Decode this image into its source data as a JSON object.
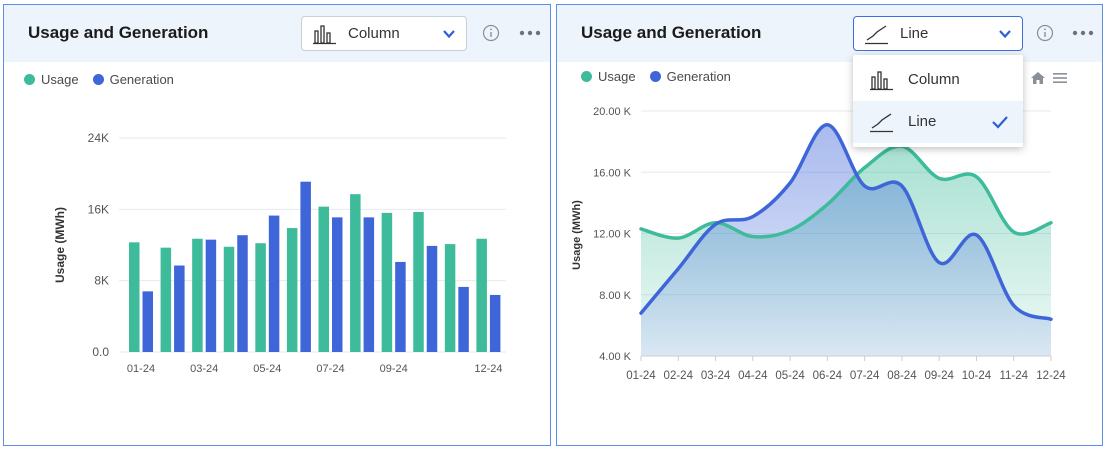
{
  "left_panel": {
    "title": "Usage and Generation",
    "select": {
      "value": "Column",
      "icon": "column-chart-icon"
    },
    "legend": [
      {
        "label": "Usage",
        "color": "#3dbb9a"
      },
      {
        "label": "Generation",
        "color": "#3f66d9"
      }
    ]
  },
  "right_panel": {
    "title": "Usage and Generation",
    "select": {
      "value": "Line",
      "icon": "line-chart-icon"
    },
    "legend": [
      {
        "label": "Usage",
        "color": "#3dbb9a"
      },
      {
        "label": "Generation",
        "color": "#3f66d9"
      }
    ],
    "dropdown": {
      "options": [
        {
          "label": "Column",
          "icon": "column-chart-icon",
          "selected": false
        },
        {
          "label": "Line",
          "icon": "line-chart-icon",
          "selected": true
        }
      ]
    }
  },
  "colors": {
    "usage": "#3dbb9a",
    "generation": "#3f66d9",
    "accent": "#3d6fe0",
    "header_bg": "#eef4fc"
  },
  "chart_data": [
    {
      "type": "bar",
      "ylabel": "Usage (MWh)",
      "ylim": [
        0,
        24000
      ],
      "ytick_labels": [
        "0.0",
        "8K",
        "16K",
        "24K"
      ],
      "ytick_values": [
        0,
        8000,
        16000,
        24000
      ],
      "categories": [
        "01-24",
        "02-24",
        "03-24",
        "04-24",
        "05-24",
        "06-24",
        "07-24",
        "08-24",
        "09-24",
        "10-24",
        "11-24",
        "12-24"
      ],
      "xtick_labels": [
        "01-24",
        "03-24",
        "05-24",
        "07-24",
        "09-24",
        "12-24"
      ],
      "xtick_indices": [
        0,
        2,
        4,
        6,
        8,
        11
      ],
      "series": [
        {
          "name": "Usage",
          "values": [
            12300,
            11700,
            12700,
            11800,
            12200,
            13900,
            16300,
            17700,
            15600,
            15700,
            12100,
            12700
          ]
        },
        {
          "name": "Generation",
          "values": [
            6800,
            9700,
            12600,
            13100,
            15300,
            19100,
            15100,
            15100,
            10100,
            11900,
            7300,
            6400
          ]
        }
      ],
      "grid": true,
      "legend_position": "top-left"
    },
    {
      "type": "area",
      "ylabel": "Usage (MWh)",
      "ylim": [
        4000,
        20000
      ],
      "ytick_labels": [
        "4.00 K",
        "8.00 K",
        "12.00 K",
        "16.00 K",
        "20.00 K"
      ],
      "ytick_values": [
        4000,
        8000,
        12000,
        16000,
        20000
      ],
      "x": [
        "01-24",
        "02-24",
        "03-24",
        "04-24",
        "05-24",
        "06-24",
        "07-24",
        "08-24",
        "09-24",
        "10-24",
        "11-24",
        "12-24"
      ],
      "series": [
        {
          "name": "Usage",
          "values": [
            12300,
            11700,
            12700,
            11800,
            12200,
            13900,
            16300,
            17700,
            15600,
            15700,
            12100,
            12700
          ]
        },
        {
          "name": "Generation",
          "values": [
            6800,
            9700,
            12600,
            13100,
            15300,
            19100,
            15100,
            15100,
            10100,
            11900,
            7300,
            6400
          ]
        }
      ],
      "grid": true,
      "legend_position": "top-left"
    }
  ]
}
